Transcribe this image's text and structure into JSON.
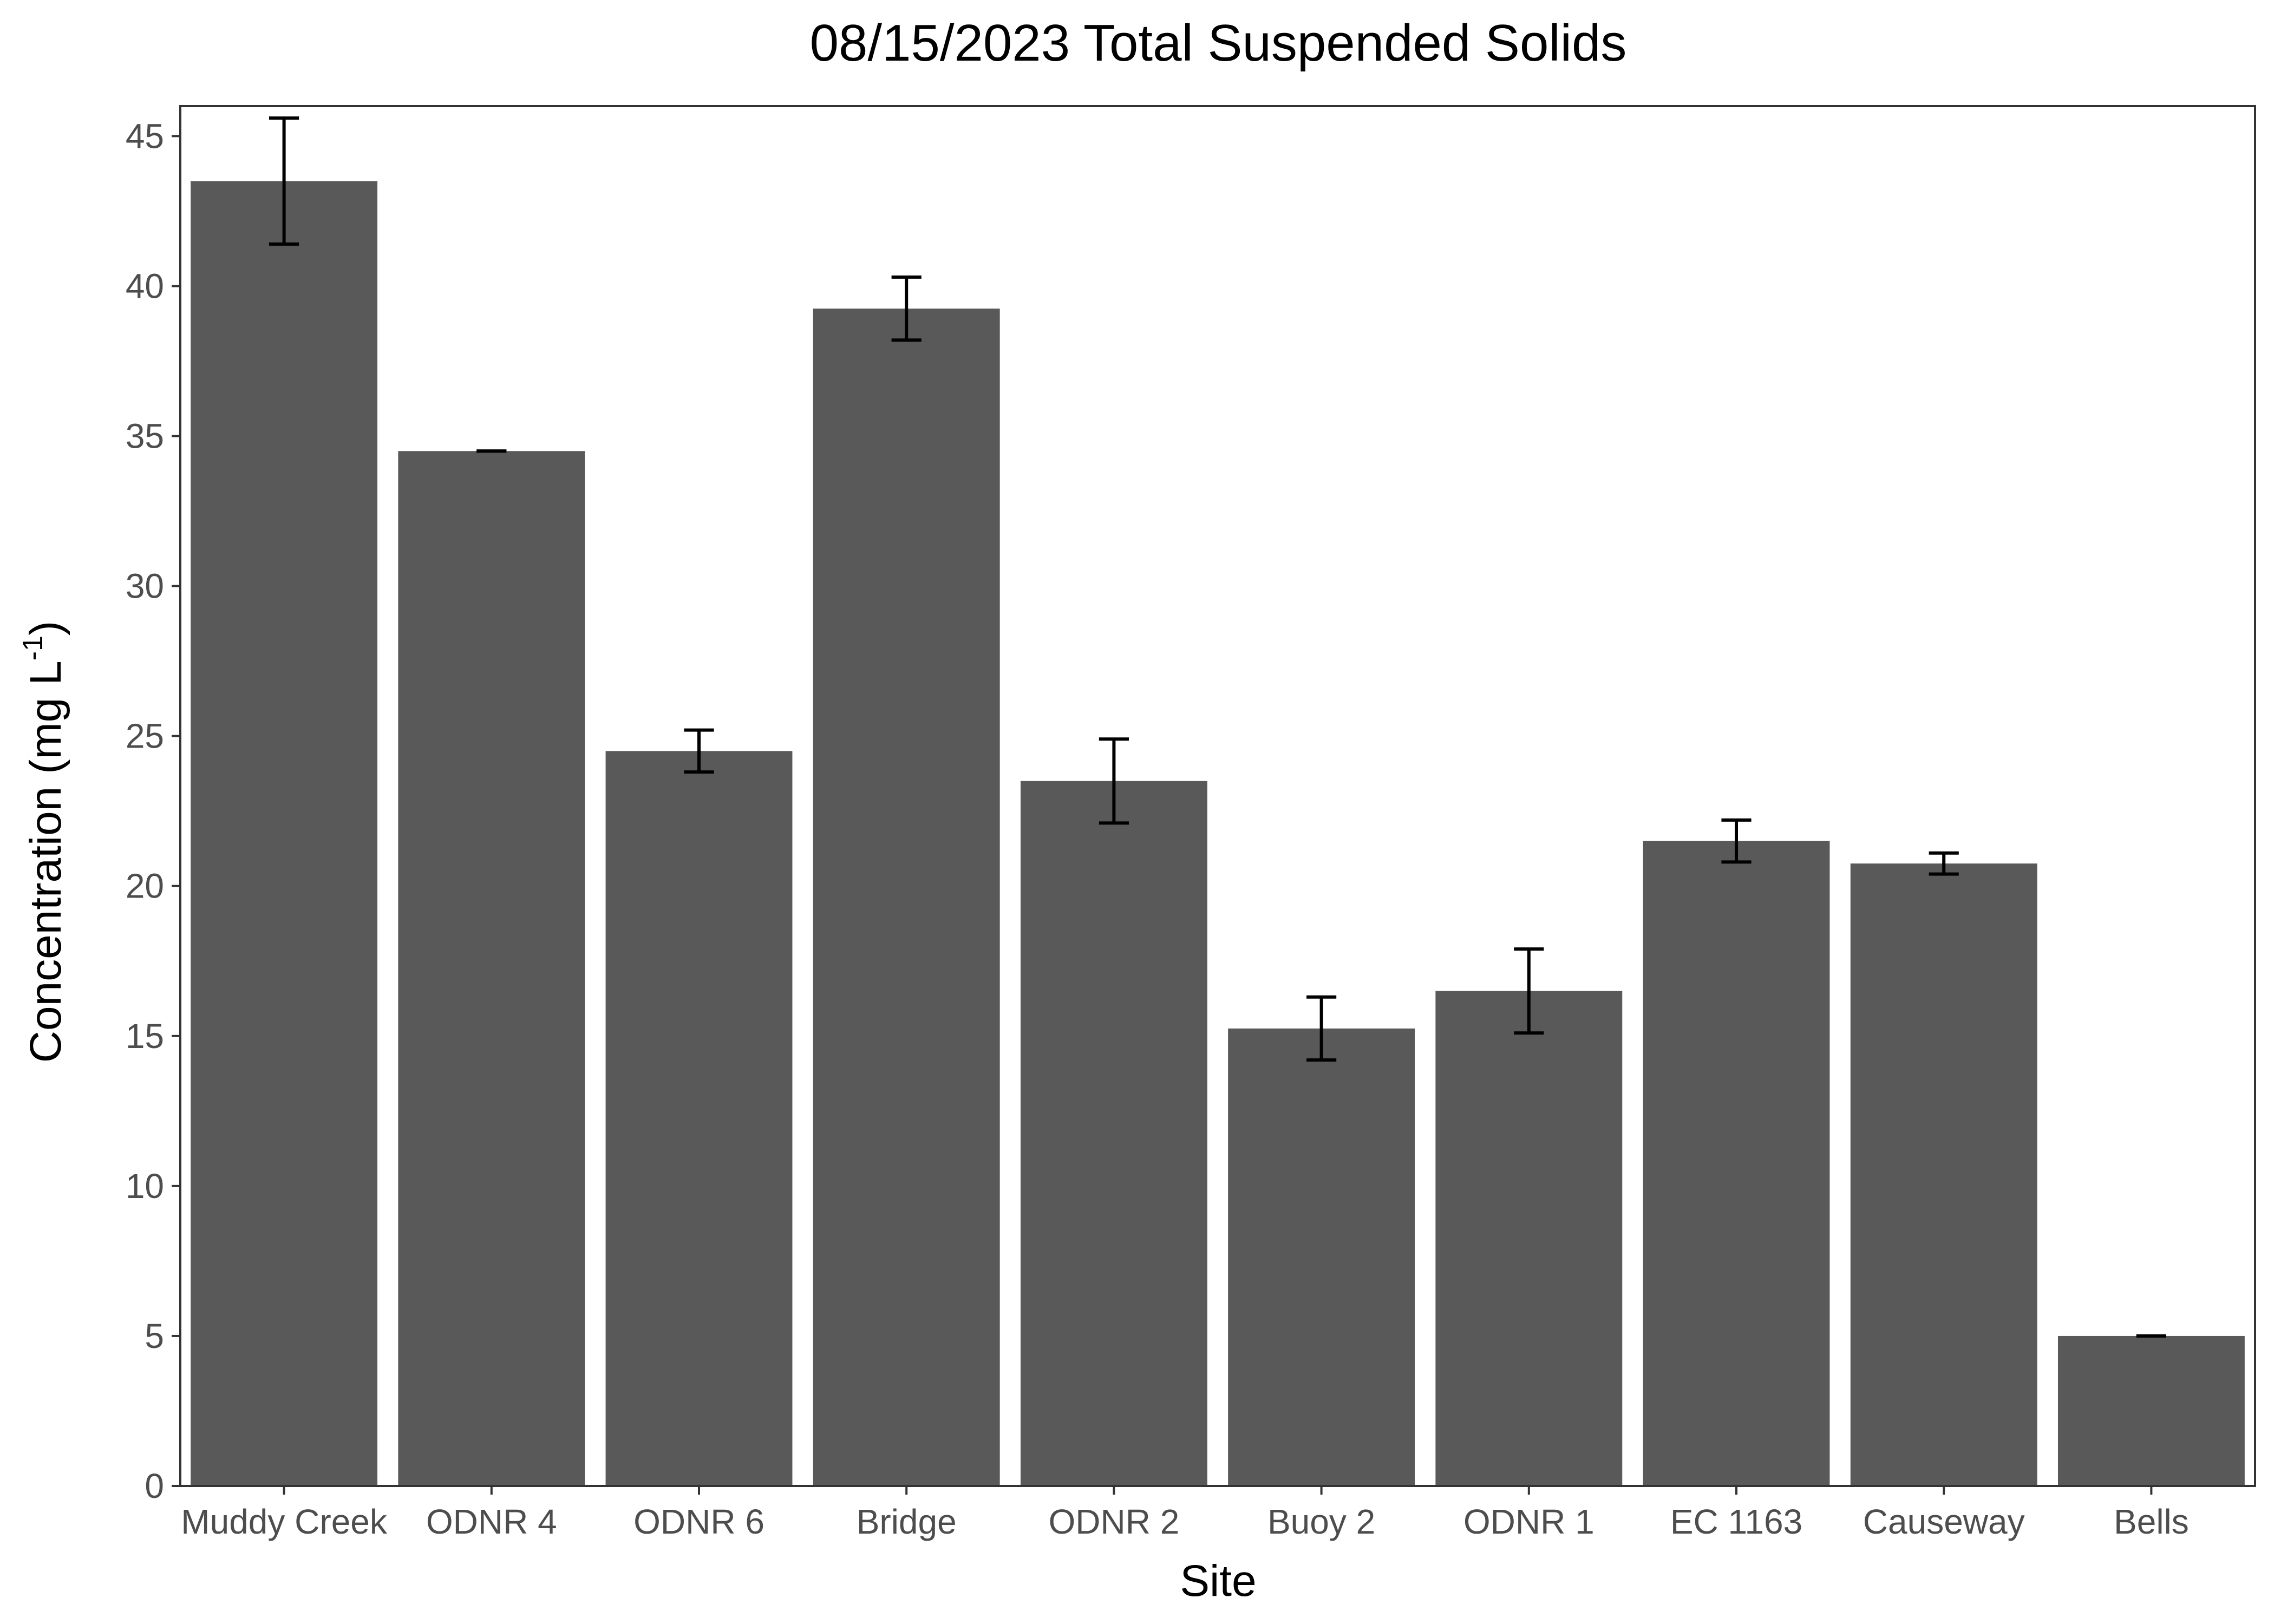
{
  "chart_data": {
    "type": "bar",
    "title": "08/15/2023 Total Suspended Solids",
    "xlabel": "Site",
    "ylabel": {
      "prefix": "Concentration (mg L",
      "superscript": "-1",
      "suffix": ")"
    },
    "ylim": [
      0,
      46
    ],
    "yticks": [
      0,
      5,
      10,
      15,
      20,
      25,
      30,
      35,
      40,
      45
    ],
    "grid": false,
    "categories": [
      "Muddy Creek",
      "ODNR 4",
      "ODNR 6",
      "Bridge",
      "ODNR 2",
      "Buoy 2",
      "ODNR 1",
      "EC 1163",
      "Causeway",
      "Bells"
    ],
    "series": [
      {
        "values": [
          43.5,
          34.5,
          24.5,
          39.25,
          23.5,
          15.25,
          16.5,
          21.5,
          20.75,
          5.0
        ],
        "error": [
          2.1,
          0.0,
          0.7,
          1.05,
          1.4,
          1.05,
          1.4,
          0.7,
          0.35,
          0.0
        ]
      }
    ],
    "colors": {
      "bar": "#595959",
      "error_bar": "#000000",
      "panel_border": "#333333",
      "tick_text": "#4d4d4d",
      "title_text": "#000000"
    }
  }
}
